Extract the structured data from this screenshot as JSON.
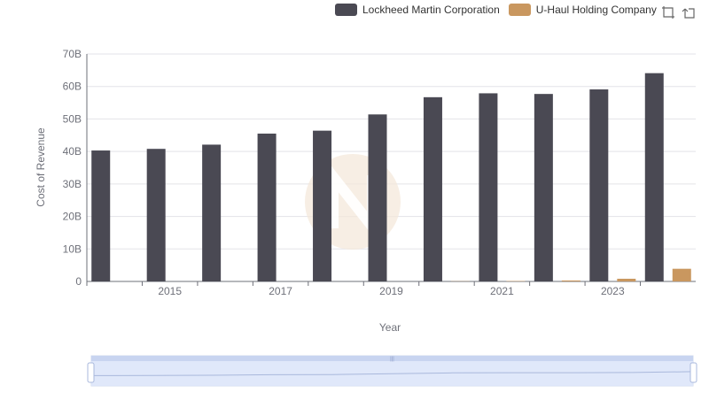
{
  "legend": {
    "items": [
      {
        "label": "Lockheed Martin Corporation",
        "color": "#4a4953"
      },
      {
        "label": "U-Haul Holding Company",
        "color": "#c9975f"
      }
    ]
  },
  "toolbox": {
    "icons": [
      "zoom-icon",
      "reset-zoom-icon"
    ]
  },
  "chart_data": {
    "type": "bar",
    "ylabel": "Cost of Revenue",
    "xlabel": "Year",
    "ylim": [
      0,
      70000000000
    ],
    "y_ticks": [
      "0",
      "10B",
      "20B",
      "30B",
      "40B",
      "50B",
      "60B",
      "70B"
    ],
    "x_tick_labels": [
      "2015",
      "2017",
      "2019",
      "2021",
      "2023"
    ],
    "categories": [
      "2014",
      "2015",
      "2016",
      "2017",
      "2018",
      "2019",
      "2020",
      "2021",
      "2022",
      "2023",
      "2024"
    ],
    "series": [
      {
        "name": "Lockheed Martin Corporation",
        "color": "#4a4953",
        "values": [
          40300000000,
          40800000000,
          42100000000,
          45500000000,
          46400000000,
          51400000000,
          56700000000,
          57900000000,
          57700000000,
          59100000000,
          64100000000
        ]
      },
      {
        "name": "U-Haul Holding Company",
        "color": "#c9975f",
        "values": [
          0,
          0,
          0,
          0,
          0,
          0,
          60000000,
          120000000,
          300000000,
          830000000,
          3900000000
        ]
      }
    ],
    "grid": true,
    "legend_position": "top-right",
    "datazoom": true
  }
}
